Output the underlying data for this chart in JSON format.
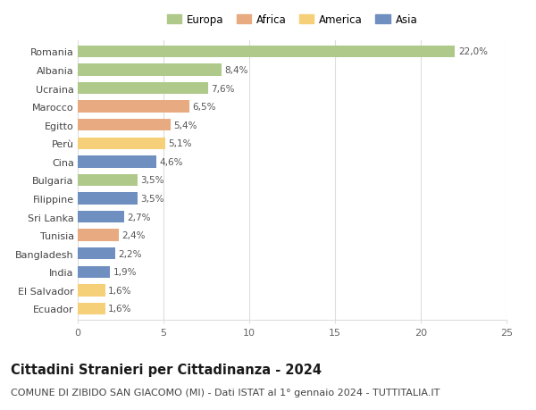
{
  "countries": [
    "Romania",
    "Albania",
    "Ucraina",
    "Marocco",
    "Egitto",
    "Perù",
    "Cina",
    "Bulgaria",
    "Filippine",
    "Sri Lanka",
    "Tunisia",
    "Bangladesh",
    "India",
    "El Salvador",
    "Ecuador"
  ],
  "values": [
    22.0,
    8.4,
    7.6,
    6.5,
    5.4,
    5.1,
    4.6,
    3.5,
    3.5,
    2.7,
    2.4,
    2.2,
    1.9,
    1.6,
    1.6
  ],
  "continents": [
    "Europa",
    "Europa",
    "Europa",
    "Africa",
    "Africa",
    "America",
    "Asia",
    "Europa",
    "Asia",
    "Asia",
    "Africa",
    "Asia",
    "Asia",
    "America",
    "America"
  ],
  "colors": {
    "Europa": "#aec98a",
    "Africa": "#e8aa80",
    "America": "#f5d078",
    "Asia": "#6e8fc0"
  },
  "legend_order": [
    "Europa",
    "Africa",
    "America",
    "Asia"
  ],
  "title": "Cittadini Stranieri per Cittadinanza - 2024",
  "subtitle": "COMUNE DI ZIBIDO SAN GIACOMO (MI) - Dati ISTAT al 1° gennaio 2024 - TUTTITALIA.IT",
  "xlim": [
    0,
    25
  ],
  "xticks": [
    0,
    5,
    10,
    15,
    20,
    25
  ],
  "background_color": "#ffffff",
  "grid_color": "#dddddd",
  "bar_label_color": "#555555",
  "title_fontsize": 10.5,
  "subtitle_fontsize": 8,
  "bar_label_fontsize": 7.5,
  "ytick_fontsize": 8,
  "xtick_fontsize": 8,
  "legend_fontsize": 8.5
}
